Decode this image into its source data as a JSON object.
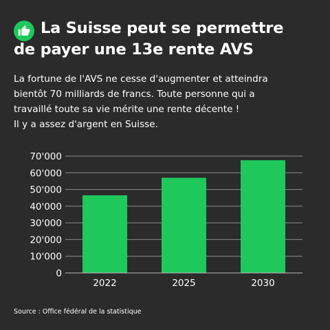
{
  "header": {
    "title_line1": "La Suisse peut se permettre",
    "title_line2": "de payer une 13e rente AVS",
    "icon": "thumbs-up-icon"
  },
  "intro": {
    "line1": "La fortune de l'AVS ne cesse d'augmenter et atteindra",
    "line2": "bientôt 70 milliards de francs. Toute personne qui a",
    "line3": "travaillé toute sa vie mérite une rente décente !",
    "line4": "Il y a assez d'argent en Suisse."
  },
  "chart_data": {
    "type": "bar",
    "categories": [
      "2022",
      "2025",
      "2030"
    ],
    "values": [
      46500,
      57000,
      67500
    ],
    "ylim": [
      0,
      70000
    ],
    "yticks": [
      "0",
      "10'000",
      "20'000",
      "30'000",
      "40'000",
      "50'000",
      "60'000",
      "70'000"
    ],
    "title": "",
    "xlabel": "",
    "ylabel": "",
    "grid": true,
    "bar_color": "#1ec85a"
  },
  "source": "Source : Office fédéral de la statistique",
  "colors": {
    "background": "#2b2b2b",
    "accent": "#1ec85a",
    "text": "#ffffff"
  }
}
